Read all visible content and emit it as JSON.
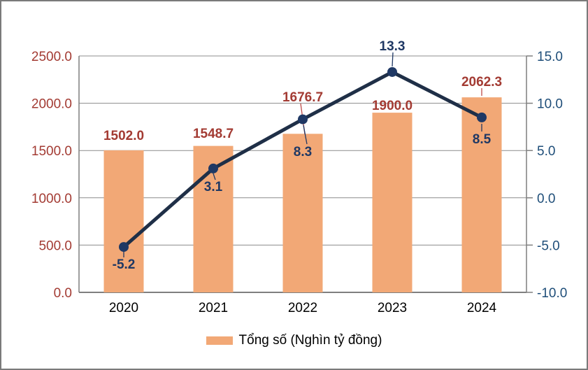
{
  "chart_data": {
    "type": "combo",
    "title": "",
    "categories": [
      "2020",
      "2021",
      "2022",
      "2023",
      "2024"
    ],
    "series": [
      {
        "name": "Tổng số (Nghìn tỷ đồng)",
        "type": "bar",
        "axis": "left",
        "values": [
          1502.0,
          1548.7,
          1676.7,
          1900.0,
          2062.3
        ],
        "data_labels": [
          "1502.0",
          "1548.7",
          "1676.7",
          "1900.0",
          "2062.3"
        ],
        "color": "#F2A876",
        "label_color": "#A33B33",
        "in_legend": true
      },
      {
        "name": "",
        "type": "line",
        "axis": "right",
        "values": [
          -5.2,
          3.1,
          8.3,
          13.3,
          8.5
        ],
        "data_labels": [
          "-5.2",
          "3.1",
          "8.3",
          "13.3",
          "8.5"
        ],
        "color": "#1F2F47",
        "marker_color": "#1F3864",
        "label_color": "#1F3864",
        "in_legend": false
      }
    ],
    "left_axis": {
      "min": 0,
      "max": 2500,
      "step": 500,
      "tick_labels": [
        "0.0",
        "500.0",
        "1000.0",
        "1500.0",
        "2000.0",
        "2500.0"
      ],
      "tick_color": "#A33B33"
    },
    "right_axis": {
      "min": -10,
      "max": 15,
      "step": 5,
      "tick_labels": [
        "-10.0",
        "-5.0",
        "0.0",
        "5.0",
        "10.0",
        "15.0"
      ],
      "tick_color": "#1F4E79"
    },
    "category_axis": {
      "tick_labels": [
        "2020",
        "2021",
        "2022",
        "2023",
        "2024"
      ],
      "tick_color": "#000000"
    },
    "legend": {
      "position": "bottom",
      "entries": [
        {
          "label": "Tổng số (Nghìn tỷ đồng)",
          "swatch_color": "#F2A876"
        }
      ]
    },
    "grid": {
      "horizontal": true,
      "color": "#8C8C8C"
    },
    "leader_line_colors": {
      "bar": "#BE4B48",
      "line": "#1F3864"
    }
  }
}
